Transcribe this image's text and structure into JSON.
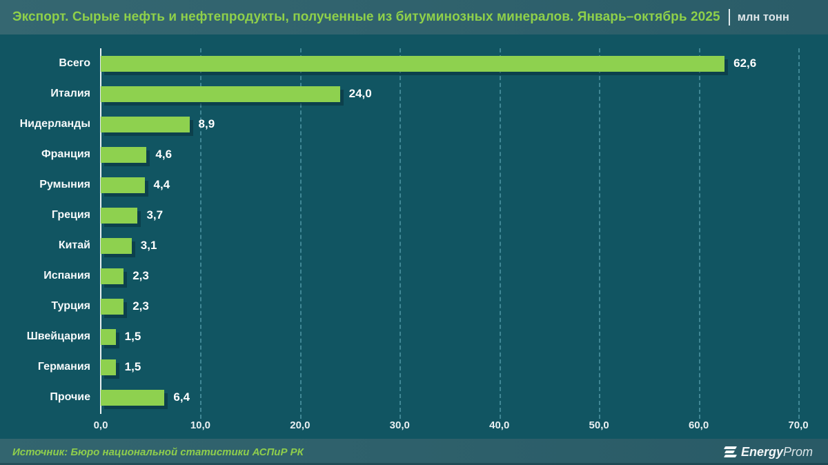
{
  "header": {
    "title": "Экспорт. Сырые нефть и нефтепродукты, полученные из битуминозных минералов. Январь–октябрь 2025",
    "units": "млн тонн"
  },
  "chart_data": {
    "type": "bar",
    "orientation": "horizontal",
    "title": "Экспорт. Сырые нефть и нефтепродукты, полученные из битуминозных минералов. Январь–октябрь 2025",
    "units": "млн тонн",
    "categories": [
      "Всего",
      "Италия",
      "Нидерланды",
      "Франция",
      "Румыния",
      "Греция",
      "Китай",
      "Испания",
      "Турция",
      "Швейцария",
      "Германия",
      "Прочие"
    ],
    "values": [
      62.6,
      24.0,
      8.9,
      4.6,
      4.4,
      3.7,
      3.1,
      2.3,
      2.3,
      1.5,
      1.5,
      6.4
    ],
    "value_labels": [
      "62,6",
      "24,0",
      "8,9",
      "4,6",
      "4,4",
      "3,7",
      "3,1",
      "2,3",
      "2,3",
      "1,5",
      "1,5",
      "6,4"
    ],
    "xlim": [
      0,
      70
    ],
    "x_ticks": [
      0,
      10,
      20,
      30,
      40,
      50,
      60,
      70
    ],
    "x_tick_labels": [
      "0,0",
      "10,0",
      "20,0",
      "30,0",
      "40,0",
      "50,0",
      "60,0",
      "70,0"
    ],
    "grid": "vertical-dashed",
    "legend": "none",
    "bar_color": "#8ed14f",
    "background_color": "#115562",
    "gridline_color": "#68b0c0",
    "label_color": "#ffffff"
  },
  "footer": {
    "source": "Источник: Бюро национальной статистики АСПиР РК",
    "logo_energy": "Energy",
    "logo_prom": "Prom"
  }
}
